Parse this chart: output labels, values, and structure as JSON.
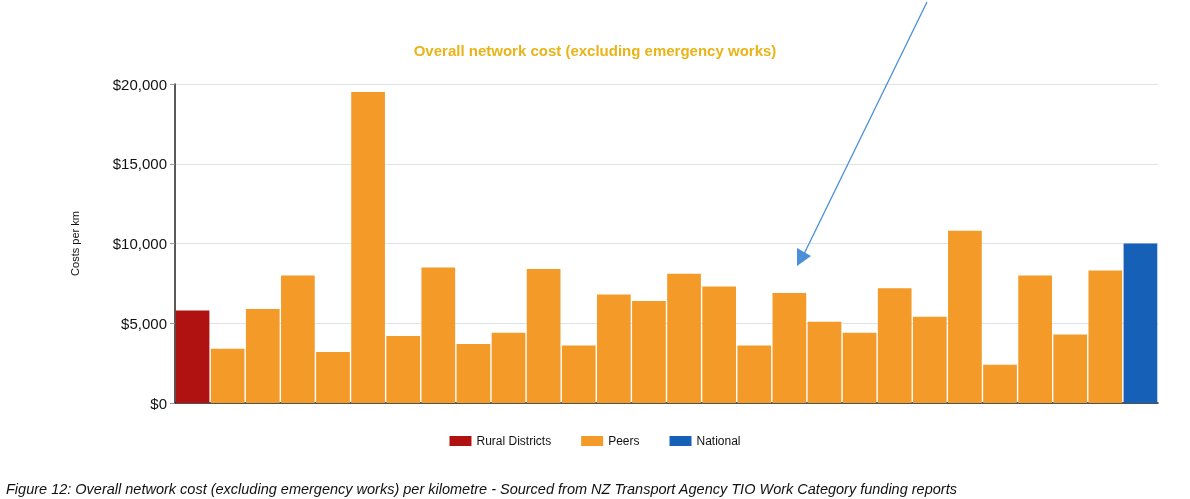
{
  "chart_data": {
    "type": "bar",
    "title": "Overall network cost (excluding emergency works)",
    "ylabel": "Costs per km",
    "categories": [
      null,
      null,
      null,
      null,
      null,
      null,
      null,
      null,
      null,
      null,
      null,
      null,
      null,
      null,
      null,
      null,
      null,
      null,
      null,
      null,
      null,
      null,
      null,
      null,
      null,
      null,
      null,
      null
    ],
    "series": [
      {
        "name": "Rural Districts",
        "color": "#b01212",
        "values": [
          5800,
          null,
          null,
          null,
          null,
          null,
          null,
          null,
          null,
          null,
          null,
          null,
          null,
          null,
          null,
          null,
          null,
          null,
          null,
          null,
          null,
          null,
          null,
          null,
          null,
          null,
          null,
          null
        ]
      },
      {
        "name": "Peers",
        "color": "#f39a28",
        "values": [
          null,
          3400,
          5900,
          8000,
          3200,
          19500,
          4200,
          8500,
          3700,
          4400,
          8400,
          3600,
          6800,
          6400,
          8100,
          7300,
          3600,
          6900,
          5100,
          4400,
          7200,
          5400,
          10800,
          2400,
          8000,
          4300,
          8300,
          null
        ]
      },
      {
        "name": "National",
        "color": "#1660b8",
        "values": [
          null,
          null,
          null,
          null,
          null,
          null,
          null,
          null,
          null,
          null,
          null,
          null,
          null,
          null,
          null,
          null,
          null,
          null,
          null,
          null,
          null,
          null,
          null,
          null,
          null,
          null,
          null,
          10000
        ]
      }
    ],
    "ylim": [
      0,
      20000
    ],
    "yticks": [
      {
        "value": 0,
        "label": "$0"
      },
      {
        "value": 5000,
        "label": "$5,000"
      },
      {
        "value": 10000,
        "label": "$10,000"
      },
      {
        "value": 15000,
        "label": "$15,000"
      },
      {
        "value": 20000,
        "label": "$20,000"
      }
    ],
    "grid": "y",
    "legend": "bottom",
    "annotations": [
      "Figure 12: Overall network cost (excluding emergency works) per kilometre - Sourced from NZ Transport Agency TIO Work Category funding reports"
    ]
  }
}
